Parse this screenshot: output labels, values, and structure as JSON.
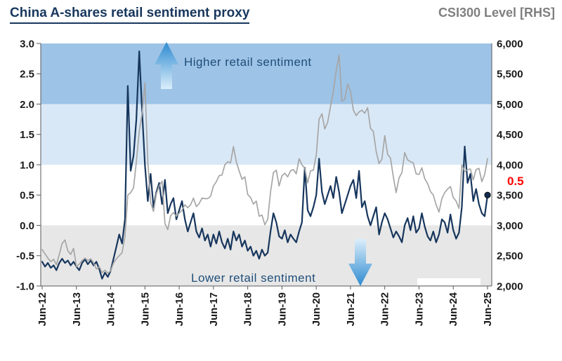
{
  "header": {
    "title": "China A-shares retail sentiment proxy",
    "right_label": "CSI300 Level [RHS]"
  },
  "annotations": {
    "higher": "Higher retail sentiment",
    "lower": "Lower retail sentiment",
    "end_value_label": "0.5"
  },
  "chart_data": {
    "type": "line",
    "title": "China A-shares retail sentiment proxy",
    "frequency": "monthly",
    "x_start": "Jun-12",
    "x_end": "Jun-25",
    "x_tick_labels": [
      "Jun-12",
      "Jun-13",
      "Jun-14",
      "Jun-15",
      "Jun-16",
      "Jun-17",
      "Jun-18",
      "Jun-19",
      "Jun-20",
      "Jun-21",
      "Jun-22",
      "Jun-23",
      "Jun-24",
      "Jun-25"
    ],
    "left_axis": {
      "min": -1.0,
      "max": 3.0,
      "tick_labels": [
        "3.0",
        "2.5",
        "2.0",
        "1.5",
        "1.0",
        "0.5",
        "0.0",
        "-0.5",
        "-1.0"
      ]
    },
    "right_axis": {
      "min": 2000,
      "max": 6000,
      "label": "CSI300 Level [RHS]",
      "tick_labels": [
        "6,000",
        "5,500",
        "5,000",
        "4,500",
        "4,000",
        "3,500",
        "3,000",
        "2,500",
        "2,000"
      ]
    },
    "bands": [
      {
        "name": "high-strong",
        "from": 2,
        "to": 3,
        "color": "#9dc3e6"
      },
      {
        "name": "high-mild",
        "from": 1,
        "to": 2,
        "color": "#d9e8f6"
      },
      {
        "name": "neutral",
        "from": 0,
        "to": 1,
        "color": "#ffffff"
      },
      {
        "name": "low",
        "from": -1,
        "to": 0,
        "color": "#e7e7e7"
      }
    ],
    "series": [
      {
        "name": "Retail sentiment proxy (LHS)",
        "axis": "left",
        "color": "#17365d",
        "values": [
          -0.6,
          -0.68,
          -0.62,
          -0.7,
          -0.66,
          -0.74,
          -0.62,
          -0.55,
          -0.62,
          -0.58,
          -0.66,
          -0.6,
          -0.68,
          -0.74,
          -0.62,
          -0.56,
          -0.64,
          -0.58,
          -0.66,
          -0.6,
          -0.72,
          -0.88,
          -0.78,
          -0.85,
          -0.75,
          -0.55,
          -0.35,
          -0.15,
          -0.3,
          0.1,
          2.3,
          0.9,
          1.15,
          1.75,
          2.87,
          1.9,
          1.0,
          0.4,
          0.85,
          0.3,
          0.55,
          0.7,
          0.35,
          0.75,
          0.2,
          0.35,
          0.45,
          0.1,
          0.25,
          0.4,
          0.1,
          -0.1,
          0.05,
          0.2,
          -0.1,
          -0.2,
          -0.05,
          -0.25,
          -0.15,
          -0.35,
          -0.15,
          -0.3,
          -0.1,
          -0.28,
          -0.38,
          -0.22,
          -0.4,
          -0.1,
          -0.25,
          -0.15,
          -0.35,
          -0.25,
          -0.42,
          -0.35,
          -0.5,
          -0.42,
          -0.55,
          -0.4,
          -0.5,
          -0.45,
          -0.1,
          0.2,
          0.05,
          -0.18,
          -0.22,
          -0.08,
          -0.28,
          -0.15,
          -0.22,
          -0.28,
          -0.1,
          0.05,
          0.95,
          0.25,
          0.15,
          0.3,
          0.5,
          1.1,
          0.55,
          0.35,
          0.5,
          0.65,
          0.45,
          0.8,
          0.55,
          0.2,
          0.35,
          0.5,
          0.65,
          0.75,
          0.45,
          0.9,
          0.3,
          0.4,
          0.15,
          0.0,
          0.15,
          0.3,
          -0.15,
          0.05,
          0.2,
          0.1,
          -0.05,
          -0.2,
          -0.1,
          -0.18,
          -0.28,
          0.0,
          0.12,
          -0.08,
          0.15,
          -0.12,
          -0.05,
          0.2,
          -0.02,
          -0.18,
          -0.25,
          -0.1,
          -0.28,
          -0.15,
          0.1,
          0.05,
          -0.12,
          0.18,
          -0.08,
          -0.22,
          -0.12,
          0.3,
          1.3,
          0.7,
          0.85,
          0.4,
          0.6,
          0.35,
          0.2,
          0.15,
          0.5
        ]
      },
      {
        "name": "CSI300 Level (RHS)",
        "axis": "right",
        "color": "#a6a6a6",
        "values": [
          2600,
          2530,
          2460,
          2400,
          2440,
          2350,
          2520,
          2700,
          2760,
          2580,
          2520,
          2620,
          2320,
          2360,
          2420,
          2460,
          2420,
          2450,
          2380,
          2280,
          2320,
          2220,
          2260,
          2210,
          2250,
          2380,
          2450,
          2500,
          2550,
          2820,
          3500,
          3540,
          3620,
          4050,
          4550,
          4840,
          5350,
          4050,
          3380,
          3230,
          3520,
          3650,
          3730,
          3030,
          2930,
          3160,
          3210,
          3150,
          3200,
          3250,
          3340,
          3290,
          3340,
          3450,
          3310,
          3360,
          3450,
          3440,
          3440,
          3480,
          3650,
          3720,
          3820,
          3830,
          4000,
          4050,
          4030,
          4300,
          4050,
          3900,
          3760,
          3800,
          3510,
          3460,
          3350,
          3400,
          3150,
          3170,
          3010,
          3100,
          3550,
          3870,
          3910,
          3650,
          3820,
          3860,
          3800,
          3900,
          3920,
          3850,
          4100,
          4000,
          3940,
          3700,
          3900,
          3910,
          4160,
          4750,
          4840,
          4590,
          4700,
          4960,
          5210,
          5550,
          5810,
          5050,
          5080,
          5330,
          5220,
          4900,
          4810,
          4870,
          4900,
          4850,
          4940,
          4600,
          4550,
          4220,
          4020,
          4090,
          4480,
          4170,
          4110,
          3800,
          3540,
          3780,
          3870,
          4200,
          4080,
          4050,
          4030,
          3850,
          3840,
          3950,
          3770,
          3690,
          3560,
          3500,
          3340,
          3220,
          3440,
          3540,
          3600,
          3640,
          3460,
          3400,
          3280,
          4000,
          3890,
          3920,
          3930,
          3750,
          3920,
          3940,
          3720,
          3840,
          4100
        ]
      }
    ],
    "end_marker": {
      "series": "Retail sentiment proxy (LHS)",
      "value": 0.5,
      "label": "0.5",
      "color": "#ff0000"
    }
  }
}
